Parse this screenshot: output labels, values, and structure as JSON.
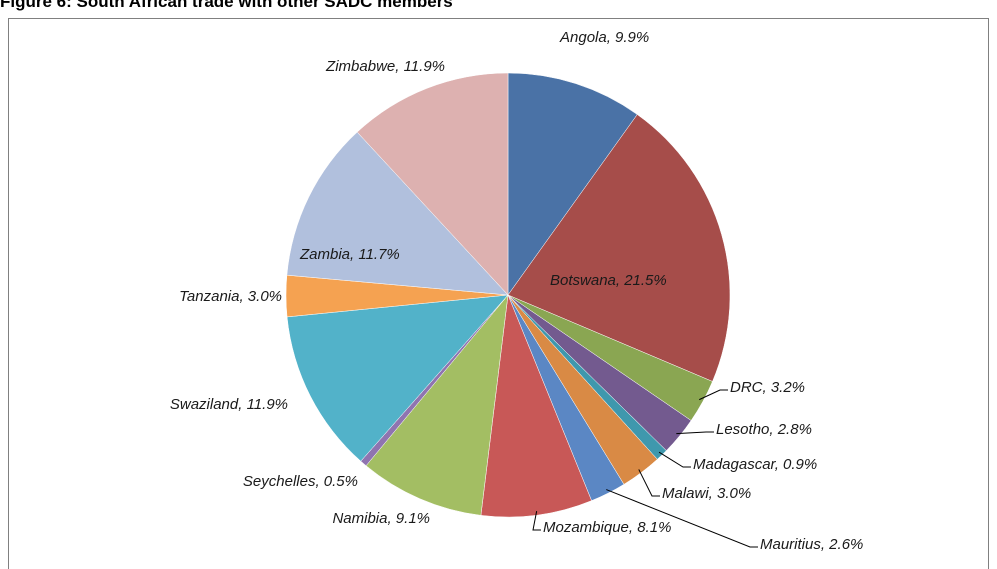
{
  "chart_data": {
    "type": "pie",
    "title": "Figure 6: South African trade with other SADC members",
    "values": [
      9.9,
      21.5,
      3.2,
      2.8,
      0.9,
      3.0,
      2.6,
      8.1,
      9.1,
      0.5,
      11.9,
      3.0,
      11.7,
      11.9
    ],
    "value_labels": [
      "Angola, 9.9%",
      "Botswana, 21.5%",
      "DRC, 3.2%",
      "Lesotho, 2.8%",
      "Madagascar, 0.9%",
      "Malawi, 3.0%",
      "Mauritius, 2.6%",
      "Mozambique, 8.1%",
      "Namibia, 9.1%",
      "Seychelles, 0.5%",
      "Swaziland, 11.9%",
      "Tanzania, 3.0%",
      "Zambia, 11.7%",
      "Zimbabwe, 11.9%"
    ],
    "colors": [
      "#4a72a6",
      "#a64d4a",
      "#8aa652",
      "#735a8f",
      "#3f98ad",
      "#d98a45",
      "#5b87c4",
      "#c85857",
      "#a3be63",
      "#8f74b0",
      "#52b2c9",
      "#f5a251",
      "#b1c0dd",
      "#ddb1b0"
    ]
  }
}
